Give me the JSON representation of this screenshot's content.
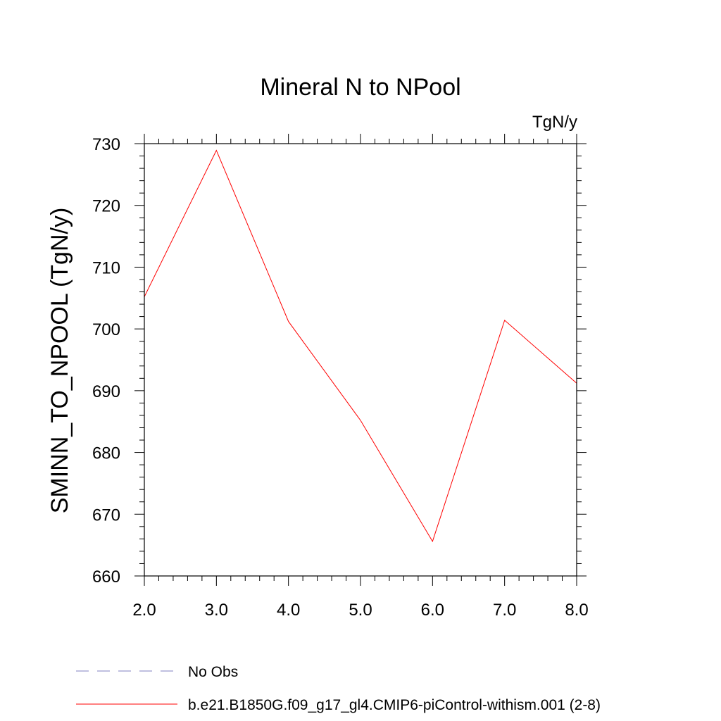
{
  "chart_data": {
    "type": "line",
    "title": "Mineral N to NPool",
    "units": "TgN/y",
    "ylabel": "SMINN_TO_NPOOL  (TgN/y)",
    "xlabel": "",
    "xlim": [
      2.0,
      8.0
    ],
    "ylim": [
      660,
      730
    ],
    "x_ticks": [
      "2.0",
      "3.0",
      "4.0",
      "5.0",
      "6.0",
      "7.0",
      "8.0"
    ],
    "y_ticks": [
      "660",
      "670",
      "680",
      "690",
      "700",
      "710",
      "720",
      "730"
    ],
    "grid": false,
    "legend_position": "bottom",
    "series": [
      {
        "name": "No Obs",
        "color": "#8080c0",
        "style": "dashed",
        "x": [],
        "y": []
      },
      {
        "name": "b.e21.B1850G.f09_g17_gl4.CMIP6-piControl-withism.001 (2-8)",
        "color": "#ff0000",
        "style": "solid",
        "x": [
          2,
          3,
          4,
          5,
          6,
          7,
          8
        ],
        "y": [
          705.2,
          728.9,
          701.2,
          685.2,
          665.6,
          701.4,
          691.2
        ]
      }
    ]
  }
}
